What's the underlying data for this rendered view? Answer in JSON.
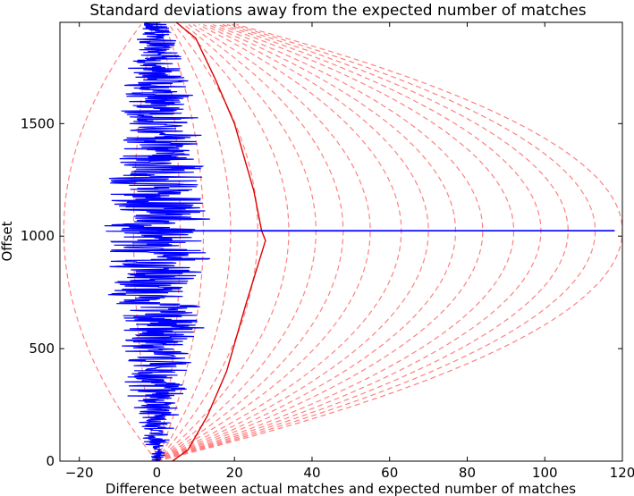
{
  "chart_data": {
    "type": "line",
    "title": "Standard deviations away from the expected number of matches",
    "xlabel": "Difference between actual matches and expected number of matches",
    "ylabel": "Offset",
    "xlim": [
      -25,
      120
    ],
    "ylim": [
      0,
      1950
    ],
    "xticks": [
      "−20",
      "0",
      "20",
      "40",
      "60",
      "80",
      "100",
      "120"
    ],
    "xtick_values": [
      -20,
      0,
      20,
      40,
      60,
      80,
      100,
      120
    ],
    "yticks": [
      "0",
      "500",
      "1000",
      "1500"
    ],
    "ytick_values": [
      0,
      500,
      1000,
      1500
    ],
    "grid": false,
    "legend": "none",
    "colors": {
      "data": "#0000ff",
      "bound": "#dd0000",
      "sigma": "#ff8080"
    },
    "peak_offset": 1024,
    "spike_value": 118,
    "series": [
      {
        "role": "observed",
        "style": "solid-blue",
        "note_points": [
          [
            0,
            0
          ],
          [
            2,
            50
          ],
          [
            -3,
            100
          ],
          [
            5,
            200
          ],
          [
            -8,
            400
          ],
          [
            10,
            500
          ],
          [
            -12,
            700
          ],
          [
            14,
            900
          ],
          [
            -15,
            1000
          ],
          [
            118,
            1024
          ],
          [
            -13,
            1100
          ],
          [
            12,
            1300
          ],
          [
            -9,
            1500
          ],
          [
            8,
            1700
          ],
          [
            -5,
            1900
          ]
        ]
      },
      {
        "role": "bound",
        "style": "solid-red",
        "points": [
          [
            4,
            0
          ],
          [
            8,
            50
          ],
          [
            13,
            200
          ],
          [
            18,
            400
          ],
          [
            23,
            700
          ],
          [
            28,
            980
          ],
          [
            27,
            1024
          ],
          [
            25,
            1200
          ],
          [
            20,
            1500
          ],
          [
            15,
            1700
          ],
          [
            10,
            1880
          ],
          [
            5,
            1950
          ]
        ]
      },
      {
        "role": "sigma",
        "style": "dashed",
        "peak": -24
      },
      {
        "role": "sigma",
        "style": "dashed",
        "peak": -6
      },
      {
        "role": "sigma",
        "style": "dashed",
        "peak": 6
      },
      {
        "role": "sigma",
        "style": "dashed",
        "peak": 12
      },
      {
        "role": "sigma",
        "style": "dashed",
        "peak": 19
      },
      {
        "role": "sigma",
        "style": "dashed",
        "peak": 26
      },
      {
        "role": "sigma",
        "style": "dashed",
        "peak": 34
      },
      {
        "role": "sigma",
        "style": "dashed",
        "peak": 41
      },
      {
        "role": "sigma",
        "style": "dashed",
        "peak": 48
      },
      {
        "role": "sigma",
        "style": "dashed",
        "peak": 55
      },
      {
        "role": "sigma",
        "style": "dashed",
        "peak": 63
      },
      {
        "role": "sigma",
        "style": "dashed",
        "peak": 70
      },
      {
        "role": "sigma",
        "style": "dashed",
        "peak": 77
      },
      {
        "role": "sigma",
        "style": "dashed",
        "peak": 84
      },
      {
        "role": "sigma",
        "style": "dashed",
        "peak": 92
      },
      {
        "role": "sigma",
        "style": "dashed",
        "peak": 99
      },
      {
        "role": "sigma",
        "style": "dashed",
        "peak": 106
      },
      {
        "role": "sigma",
        "style": "dashed",
        "peak": 113
      },
      {
        "role": "sigma",
        "style": "dashed",
        "peak": 120
      }
    ]
  }
}
